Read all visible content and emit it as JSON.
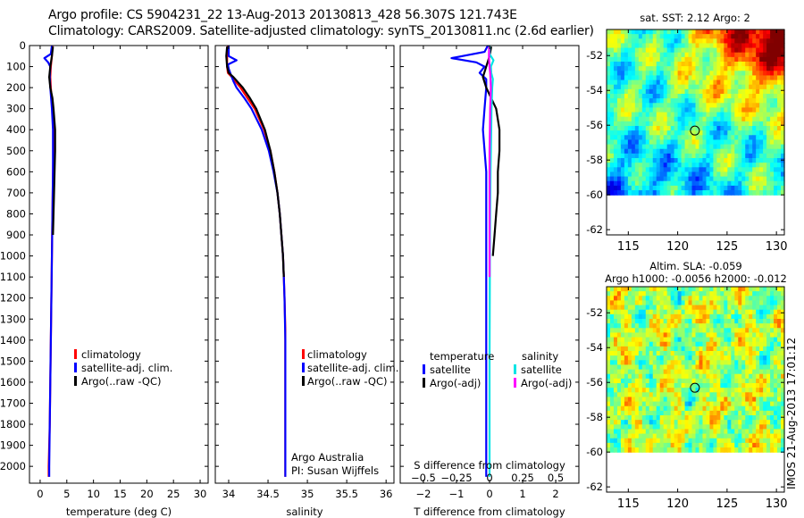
{
  "header": {
    "line1": "Argo profile: CS 5904231_22 13-Aug-2013 20130813_428 56.307S 121.743E",
    "line2": "Climatology: CARS2009. Satellite-adjusted climatology: synTS_20130811.nc (2.6d earlier)"
  },
  "depth_ticks": [
    0,
    100,
    200,
    300,
    400,
    500,
    600,
    700,
    800,
    900,
    1000,
    1100,
    1200,
    1300,
    1400,
    1500,
    1600,
    1700,
    1800,
    1900,
    2000
  ],
  "colors": {
    "climatology": "#ff0000",
    "satellite": "#0000ff",
    "argo": "#000000",
    "sal_satellite": "#00e5e5",
    "sal_argo": "#ff00ff"
  },
  "chart_data": [
    {
      "type": "line",
      "xlabel": "temperature (deg C)",
      "xlim": [
        -2,
        31.5
      ],
      "ylim": [
        2080,
        0
      ],
      "xticks": [
        0,
        5,
        10,
        15,
        20,
        25,
        30
      ],
      "xtick_labels": [
        "0",
        "5",
        "10",
        "15",
        "20",
        "25",
        "30"
      ],
      "legend": {
        "placement": "lower-left",
        "entries": [
          "climatology",
          "satellite-adj. clim.",
          "Argo(..raw -QC)"
        ]
      },
      "series": [
        {
          "name": "climatology",
          "color": "#ff0000",
          "depth": [
            0,
            50,
            100,
            150,
            200,
            300,
            400,
            500,
            600,
            800,
            1000,
            1200,
            1400,
            1600,
            1800,
            2000,
            2050
          ],
          "values": [
            2.3,
            2.2,
            2.0,
            1.9,
            2.0,
            2.3,
            2.5,
            2.5,
            2.4,
            2.3,
            2.2,
            2.1,
            2.0,
            1.9,
            1.8,
            1.6,
            1.6
          ]
        },
        {
          "name": "satellite-adj. clim.",
          "color": "#0000ff",
          "depth": [
            0,
            40,
            60,
            80,
            100,
            150,
            200,
            300,
            400,
            500,
            600,
            800,
            1000,
            1200,
            1400,
            1600,
            1800,
            2000,
            2050
          ],
          "values": [
            2.2,
            2.0,
            0.8,
            1.5,
            1.9,
            1.8,
            1.9,
            2.2,
            2.4,
            2.4,
            2.4,
            2.3,
            2.2,
            2.1,
            2.0,
            1.9,
            1.8,
            1.7,
            1.7
          ]
        },
        {
          "name": "Argo(..raw -QC)",
          "color": "#000000",
          "depth": [
            5,
            50,
            100,
            150,
            200,
            250,
            300,
            400,
            500,
            600,
            700,
            800,
            900
          ],
          "values": [
            2.4,
            2.2,
            1.9,
            1.7,
            1.9,
            2.3,
            2.5,
            2.8,
            2.8,
            2.7,
            2.6,
            2.5,
            2.4
          ]
        }
      ]
    },
    {
      "type": "line",
      "xlabel": "salinity",
      "xlim": [
        33.83,
        36.1
      ],
      "ylim": [
        2080,
        0
      ],
      "xticks": [
        34,
        34.5,
        35,
        35.5,
        36
      ],
      "xtick_labels": [
        "34",
        "34.5",
        "35",
        "35.5",
        "36"
      ],
      "legend": {
        "placement": "lower-right",
        "entries": [
          "climatology",
          "satellite-adj. clim.",
          "Argo(..raw -QC)"
        ]
      },
      "annotation": [
        "Argo Australia",
        "PI: Susan Wijffels"
      ],
      "series": [
        {
          "name": "climatology",
          "color": "#ff0000",
          "depth": [
            0,
            50,
            100,
            130,
            150,
            200,
            250,
            300,
            400,
            500,
            600,
            700,
            800,
            900,
            1000,
            1100,
            1200,
            1350,
            1500,
            1700,
            1900,
            2050
          ],
          "values": [
            33.99,
            33.98,
            33.98,
            33.99,
            34.04,
            34.15,
            34.24,
            34.33,
            34.45,
            34.53,
            34.58,
            34.62,
            34.65,
            34.67,
            34.69,
            34.7,
            34.71,
            34.72,
            34.72,
            34.72,
            34.72,
            34.72
          ]
        },
        {
          "name": "satellite-adj. clim.",
          "color": "#0000ff",
          "depth": [
            0,
            50,
            70,
            90,
            110,
            140,
            170,
            200,
            250,
            300,
            400,
            500,
            600,
            700,
            800,
            900,
            1000,
            1100,
            1200,
            1400,
            1600,
            1800,
            2000,
            2050
          ],
          "values": [
            34.0,
            34.0,
            34.1,
            33.99,
            34.0,
            34.03,
            34.06,
            34.1,
            34.2,
            34.29,
            34.42,
            34.51,
            34.57,
            34.62,
            34.65,
            34.67,
            34.69,
            34.7,
            34.71,
            34.72,
            34.72,
            34.72,
            34.72,
            34.72
          ]
        },
        {
          "name": "Argo(..raw -QC)",
          "color": "#000000",
          "depth": [
            5,
            50,
            100,
            130,
            150,
            200,
            250,
            300,
            400,
            500,
            600,
            700,
            800,
            900,
            1000,
            1100
          ],
          "values": [
            33.98,
            33.97,
            33.98,
            34.0,
            34.06,
            34.18,
            34.27,
            34.35,
            34.46,
            34.53,
            34.58,
            34.62,
            34.65,
            34.67,
            34.69,
            34.7
          ]
        }
      ]
    },
    {
      "type": "line",
      "xlabel": "T difference from climatology",
      "xlabel_top": "S difference from climatology",
      "xlim": [
        -2.7,
        2.7
      ],
      "ylim": [
        2080,
        0
      ],
      "xticks": [
        -2,
        -1,
        0,
        1,
        2
      ],
      "xtick_labels": [
        "−2",
        "−1",
        "0",
        "1",
        "2"
      ],
      "xticks_top": [
        -0.5,
        -0.25,
        0,
        0.25,
        0.5
      ],
      "xtick_labels_top": [
        "−0.5",
        "−0.25",
        "0",
        "0.25",
        "0.5"
      ],
      "legend": {
        "placement": "lower-center",
        "group_titles": [
          "temperature",
          "salinity"
        ],
        "entries": [
          "satellite",
          "Argo(-adj)",
          "satellite",
          "Argo(-adj)"
        ]
      },
      "series": [
        {
          "name": "temperature satellite",
          "color": "#0000ff",
          "depth": [
            0,
            30,
            60,
            80,
            100,
            130,
            160,
            200,
            300,
            400,
            600,
            800,
            1000,
            1500,
            2050
          ],
          "values": [
            -0.05,
            -0.15,
            -1.15,
            -0.4,
            -0.15,
            -0.3,
            -0.1,
            -0.1,
            -0.15,
            -0.2,
            -0.1,
            -0.1,
            -0.1,
            -0.1,
            -0.1
          ]
        },
        {
          "name": "temperature Argo(-adj)",
          "color": "#000000",
          "depth": [
            5,
            50,
            100,
            150,
            200,
            300,
            400,
            500,
            600,
            700,
            800,
            900,
            1000
          ],
          "values": [
            0.05,
            0.0,
            -0.1,
            -0.2,
            -0.1,
            0.2,
            0.3,
            0.3,
            0.25,
            0.25,
            0.2,
            0.15,
            0.1
          ]
        },
        {
          "name": "salinity satellite",
          "color": "#00e5e5",
          "depth": [
            0,
            40,
            70,
            100,
            130,
            160,
            200,
            300,
            400,
            600,
            800,
            1000,
            1500,
            2050
          ],
          "values": [
            0.0,
            0.0,
            0.12,
            0.04,
            0.05,
            0.1,
            0.08,
            0.06,
            0.05,
            0.03,
            0.02,
            0.01,
            0.0,
            0.0
          ]
        },
        {
          "name": "salinity Argo(-adj)",
          "color": "#ff00ff",
          "depth": [
            5,
            50,
            100,
            130,
            160,
            200,
            250,
            300,
            400,
            500,
            600,
            700,
            800,
            900,
            1000,
            1100
          ],
          "values": [
            -0.01,
            -0.02,
            0.0,
            0.02,
            0.03,
            0.04,
            0.03,
            0.02,
            0.01,
            0.0,
            0.0,
            0.0,
            0.0,
            0.0,
            0.0,
            0.0
          ]
        }
      ]
    },
    {
      "type": "heatmap",
      "title": "sat. SST: 2.12 Argo: 2",
      "xlim": [
        112.8,
        130.8
      ],
      "ylim": [
        -62.3,
        -50.5
      ],
      "xticks": [
        115,
        120,
        125,
        130
      ],
      "yticks": [
        -52,
        -54,
        -56,
        -58,
        -60,
        -62
      ],
      "data_extent_lat": [
        -60,
        -50.5
      ],
      "marker": {
        "lon": 121.743,
        "lat": -56.307
      }
    },
    {
      "type": "heatmap",
      "title": "Altim. SLA: -0.059",
      "subtitle": "Argo h1000: -0.0056 h2000: -0.012",
      "xlim": [
        112.8,
        130.8
      ],
      "ylim": [
        -62.3,
        -50.5
      ],
      "xticks": [
        115,
        120,
        125,
        130
      ],
      "yticks": [
        -52,
        -54,
        -56,
        -58,
        -60,
        -62
      ],
      "data_extent_lat": [
        -60,
        -50.5
      ],
      "marker": {
        "lon": 121.743,
        "lat": -56.307
      }
    }
  ],
  "watermark": "IMOS 21-Aug-2013 17:01:12"
}
